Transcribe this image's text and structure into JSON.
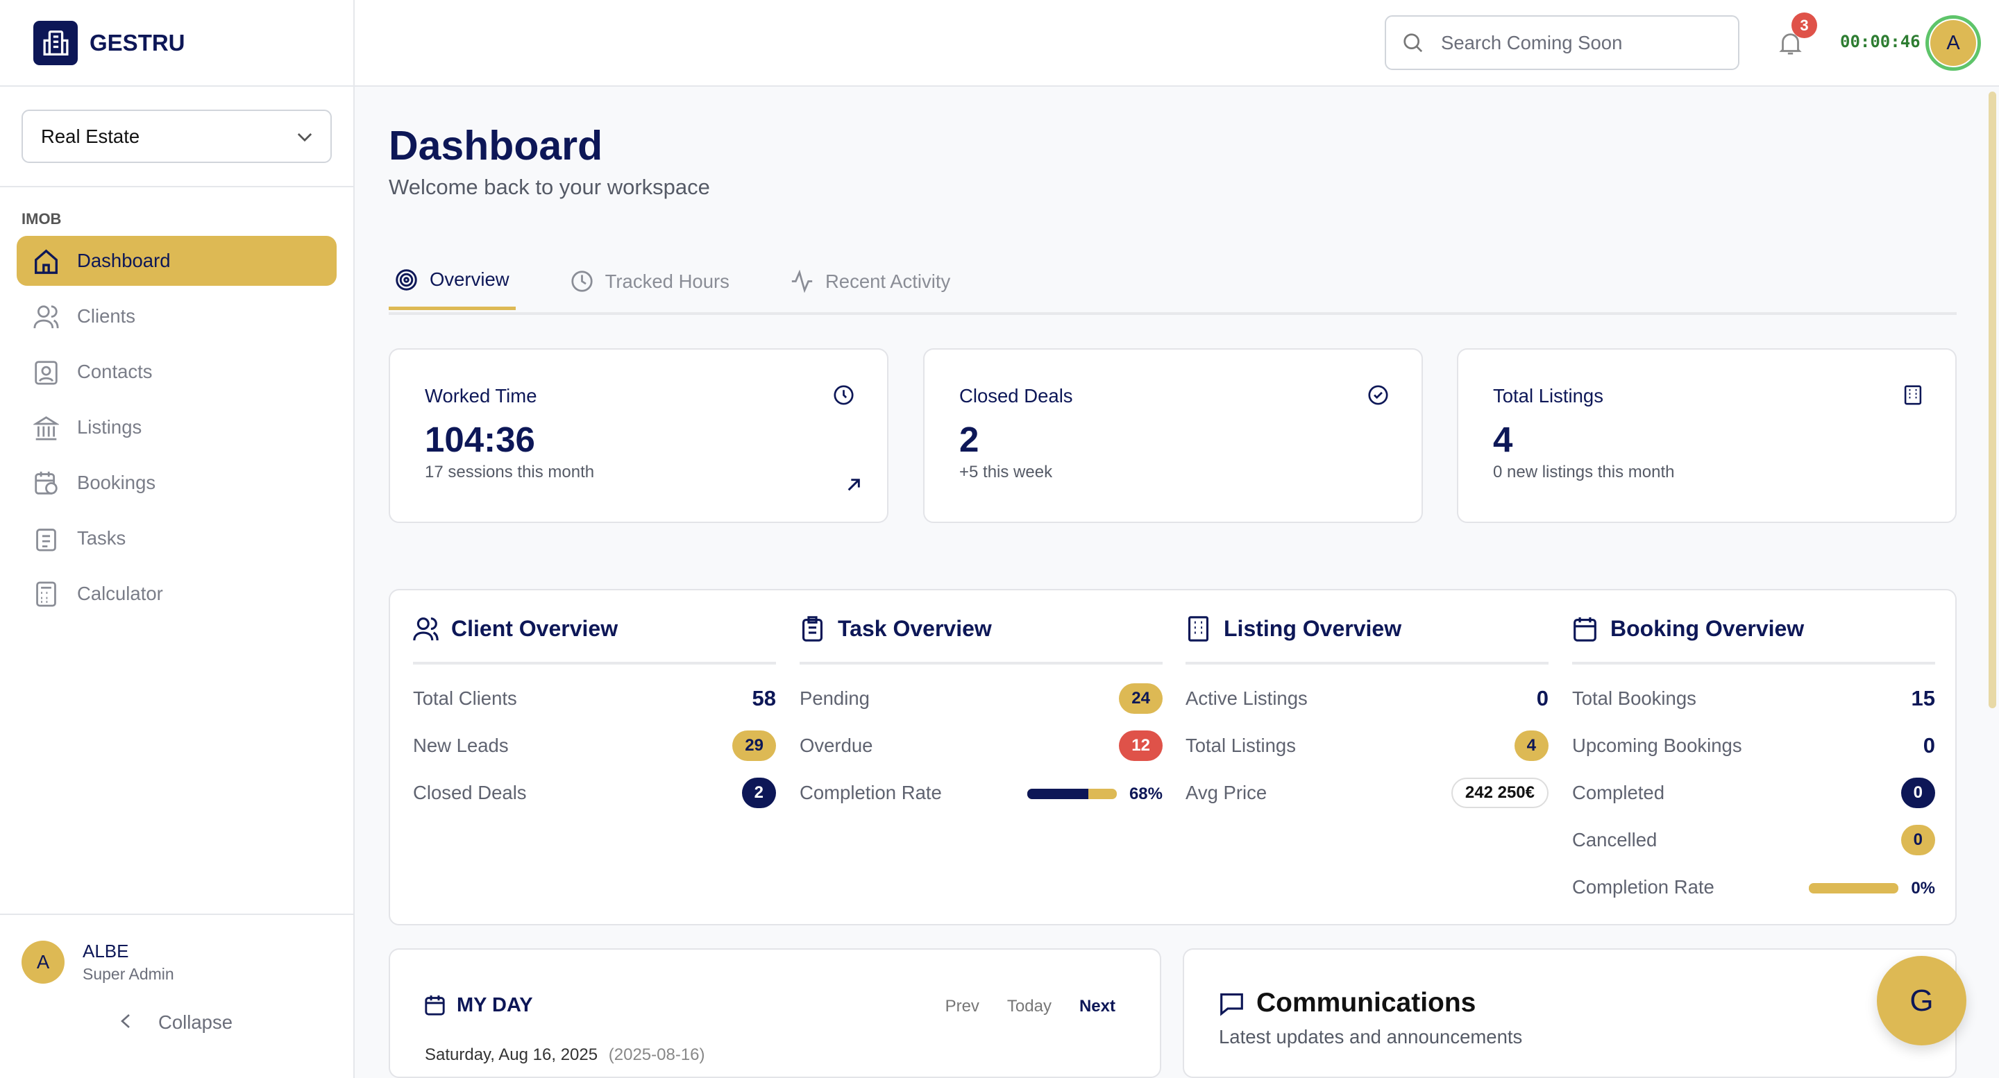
{
  "app": {
    "name": "GESTRU"
  },
  "sidebar": {
    "workspace": "Real Estate",
    "section": "IMOB",
    "items": [
      {
        "label": "Dashboard"
      },
      {
        "label": "Clients"
      },
      {
        "label": "Contacts"
      },
      {
        "label": "Listings"
      },
      {
        "label": "Bookings"
      },
      {
        "label": "Tasks"
      },
      {
        "label": "Calculator"
      }
    ],
    "user": {
      "initial": "A",
      "name": "ALBE",
      "role": "Super Admin"
    },
    "collapse": "Collapse"
  },
  "topbar": {
    "search_placeholder": "Search Coming Soon",
    "notifications": "3",
    "timer": "00:00:46",
    "avatar": "A"
  },
  "page": {
    "title": "Dashboard",
    "subtitle": "Welcome back to your workspace"
  },
  "tabs": [
    {
      "label": "Overview"
    },
    {
      "label": "Tracked Hours"
    },
    {
      "label": "Recent Activity"
    }
  ],
  "stats": [
    {
      "title": "Worked Time",
      "value": "104:36",
      "sub": "17 sessions this month"
    },
    {
      "title": "Closed Deals",
      "value": "2",
      "sub": "+5 this week"
    },
    {
      "title": "Total Listings",
      "value": "4",
      "sub": "0 new listings this month"
    }
  ],
  "client": {
    "title": "Client Overview",
    "rows": [
      {
        "label": "Total Clients",
        "value": "58"
      },
      {
        "label": "New Leads",
        "value": "29"
      },
      {
        "label": "Closed Deals",
        "value": "2"
      }
    ]
  },
  "task": {
    "title": "Task Overview",
    "rows": [
      {
        "label": "Pending",
        "value": "24"
      },
      {
        "label": "Overdue",
        "value": "12"
      },
      {
        "label": "Completion Rate",
        "value": "68%"
      }
    ],
    "completion": 68
  },
  "listing": {
    "title": "Listing Overview",
    "rows": [
      {
        "label": "Active Listings",
        "value": "0"
      },
      {
        "label": "Total Listings",
        "value": "4"
      },
      {
        "label": "Avg Price",
        "value": "242 250€"
      }
    ]
  },
  "booking": {
    "title": "Booking Overview",
    "rows": [
      {
        "label": "Total Bookings",
        "value": "15"
      },
      {
        "label": "Upcoming Bookings",
        "value": "0"
      },
      {
        "label": "Completed",
        "value": "0"
      },
      {
        "label": "Cancelled",
        "value": "0"
      },
      {
        "label": "Completion Rate",
        "value": "0%"
      }
    ],
    "completion": 0
  },
  "myday": {
    "title": "MY DAY",
    "prev": "Prev",
    "today": "Today",
    "next": "Next",
    "date": "Saturday, Aug 16, 2025",
    "iso": "(2025-08-16)"
  },
  "comm": {
    "title": "Communications",
    "sub": "Latest updates and announcements"
  },
  "fab": "G"
}
